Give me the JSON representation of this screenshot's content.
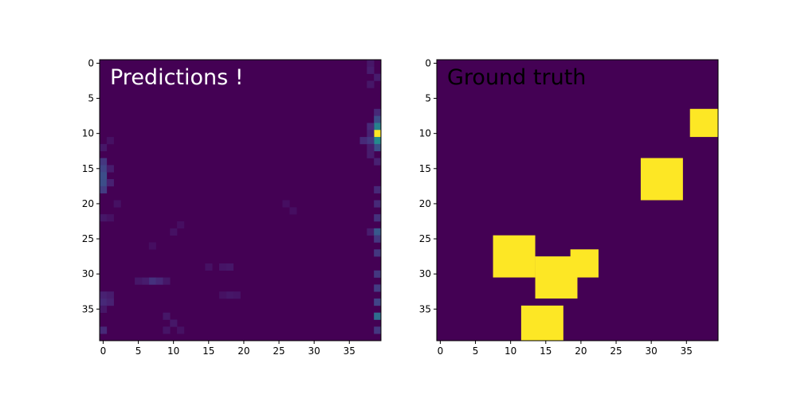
{
  "chart_data": [
    {
      "type": "heatmap",
      "title_overlay": "Predictions !",
      "overlay_color": "#ffffff",
      "grid_size": 40,
      "xlim": [
        -0.5,
        39.5
      ],
      "ylim": [
        39.5,
        -0.5
      ],
      "xticks": [
        0,
        5,
        10,
        15,
        20,
        25,
        30,
        35
      ],
      "yticks": [
        0,
        5,
        10,
        15,
        20,
        25,
        30,
        35
      ],
      "colormap": "viridis",
      "background_value": 0.0,
      "cells": [
        {
          "x": 38,
          "y": 0,
          "v": 0.08
        },
        {
          "x": 38,
          "y": 1,
          "v": 0.1
        },
        {
          "x": 39,
          "y": 2,
          "v": 0.1
        },
        {
          "x": 38,
          "y": 3,
          "v": 0.08
        },
        {
          "x": 39,
          "y": 7,
          "v": 0.15
        },
        {
          "x": 39,
          "y": 8,
          "v": 0.3
        },
        {
          "x": 39,
          "y": 9,
          "v": 0.55
        },
        {
          "x": 38,
          "y": 9,
          "v": 0.15
        },
        {
          "x": 39,
          "y": 10,
          "v": 1.0
        },
        {
          "x": 38,
          "y": 10,
          "v": 0.12
        },
        {
          "x": 39,
          "y": 11,
          "v": 0.6
        },
        {
          "x": 38,
          "y": 11,
          "v": 0.2
        },
        {
          "x": 37,
          "y": 11,
          "v": 0.15
        },
        {
          "x": 39,
          "y": 12,
          "v": 0.3
        },
        {
          "x": 38,
          "y": 12,
          "v": 0.1
        },
        {
          "x": 38,
          "y": 13,
          "v": 0.1
        },
        {
          "x": 39,
          "y": 14,
          "v": 0.12
        },
        {
          "x": 39,
          "y": 18,
          "v": 0.15
        },
        {
          "x": 39,
          "y": 20,
          "v": 0.15
        },
        {
          "x": 39,
          "y": 22,
          "v": 0.18
        },
        {
          "x": 38,
          "y": 24,
          "v": 0.1
        },
        {
          "x": 39,
          "y": 24,
          "v": 0.35
        },
        {
          "x": 39,
          "y": 25,
          "v": 0.2
        },
        {
          "x": 39,
          "y": 27,
          "v": 0.2
        },
        {
          "x": 39,
          "y": 30,
          "v": 0.2
        },
        {
          "x": 39,
          "y": 32,
          "v": 0.22
        },
        {
          "x": 39,
          "y": 34,
          "v": 0.25
        },
        {
          "x": 39,
          "y": 36,
          "v": 0.45
        },
        {
          "x": 39,
          "y": 38,
          "v": 0.2
        },
        {
          "x": 0,
          "y": 14,
          "v": 0.2
        },
        {
          "x": 0,
          "y": 15,
          "v": 0.25
        },
        {
          "x": 0,
          "y": 16,
          "v": 0.3
        },
        {
          "x": 0,
          "y": 17,
          "v": 0.3
        },
        {
          "x": 0,
          "y": 18,
          "v": 0.22
        },
        {
          "x": 1,
          "y": 15,
          "v": 0.1
        },
        {
          "x": 1,
          "y": 17,
          "v": 0.12
        },
        {
          "x": 0,
          "y": 12,
          "v": 0.08
        },
        {
          "x": 1,
          "y": 11,
          "v": 0.06
        },
        {
          "x": 2,
          "y": 20,
          "v": 0.06
        },
        {
          "x": 0,
          "y": 22,
          "v": 0.08
        },
        {
          "x": 1,
          "y": 22,
          "v": 0.06
        },
        {
          "x": 0,
          "y": 33,
          "v": 0.12
        },
        {
          "x": 1,
          "y": 33,
          "v": 0.1
        },
        {
          "x": 0,
          "y": 34,
          "v": 0.15
        },
        {
          "x": 1,
          "y": 34,
          "v": 0.12
        },
        {
          "x": 0,
          "y": 35,
          "v": 0.08
        },
        {
          "x": 0,
          "y": 38,
          "v": 0.15
        },
        {
          "x": 7,
          "y": 31,
          "v": 0.18
        },
        {
          "x": 8,
          "y": 31,
          "v": 0.14
        },
        {
          "x": 6,
          "y": 31,
          "v": 0.1
        },
        {
          "x": 5,
          "y": 31,
          "v": 0.08
        },
        {
          "x": 9,
          "y": 31,
          "v": 0.08
        },
        {
          "x": 17,
          "y": 29,
          "v": 0.07
        },
        {
          "x": 18,
          "y": 29,
          "v": 0.08
        },
        {
          "x": 15,
          "y": 29,
          "v": 0.06
        },
        {
          "x": 18,
          "y": 33,
          "v": 0.08
        },
        {
          "x": 19,
          "y": 33,
          "v": 0.07
        },
        {
          "x": 17,
          "y": 33,
          "v": 0.06
        },
        {
          "x": 9,
          "y": 36,
          "v": 0.08
        },
        {
          "x": 10,
          "y": 37,
          "v": 0.08
        },
        {
          "x": 9,
          "y": 38,
          "v": 0.07
        },
        {
          "x": 11,
          "y": 38,
          "v": 0.06
        },
        {
          "x": 10,
          "y": 24,
          "v": 0.06
        },
        {
          "x": 11,
          "y": 23,
          "v": 0.05
        },
        {
          "x": 7,
          "y": 26,
          "v": 0.05
        },
        {
          "x": 26,
          "y": 20,
          "v": 0.05
        },
        {
          "x": 27,
          "y": 21,
          "v": 0.05
        }
      ]
    },
    {
      "type": "heatmap",
      "title_overlay": "Ground truth",
      "overlay_color": "#000000",
      "grid_size": 40,
      "xlim": [
        -0.5,
        39.5
      ],
      "ylim": [
        39.5,
        -0.5
      ],
      "xticks": [
        0,
        5,
        10,
        15,
        20,
        25,
        30,
        35
      ],
      "yticks": [
        0,
        5,
        10,
        15,
        20,
        25,
        30,
        35
      ],
      "colormap": "viridis",
      "background_value": 0.0,
      "blocks": [
        {
          "x0": 36,
          "x1": 39,
          "y0": 7,
          "y1": 10,
          "v": 1
        },
        {
          "x0": 29,
          "x1": 34,
          "y0": 14,
          "y1": 19,
          "v": 1
        },
        {
          "x0": 8,
          "x1": 13,
          "y0": 25,
          "y1": 30,
          "v": 1
        },
        {
          "x0": 14,
          "x1": 19,
          "y0": 28,
          "y1": 33,
          "v": 1
        },
        {
          "x0": 19,
          "x1": 22,
          "y0": 27,
          "y1": 30,
          "v": 1
        },
        {
          "x0": 12,
          "x1": 17,
          "y0": 35,
          "y1": 39,
          "v": 1
        }
      ]
    }
  ]
}
